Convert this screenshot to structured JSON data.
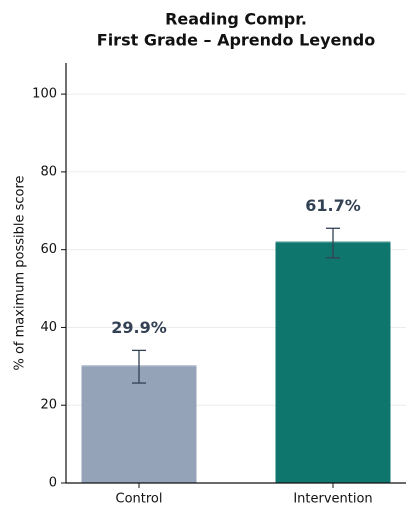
{
  "chart_data": {
    "type": "bar",
    "title": "Reading Compr.",
    "subtitle": "First Grade – Aprendo Leyendo",
    "y_label": "% of maximum possible score",
    "categories": [
      "Control",
      "Intervention"
    ],
    "values": [
      29.9,
      61.7
    ],
    "value_labels": [
      "29.9%",
      "61.7%"
    ],
    "errors": [
      4.2,
      3.8
    ],
    "colors": [
      "#94a3b8",
      "#0f766e"
    ],
    "ylim": [
      0,
      108
    ],
    "yticks": [
      0,
      20,
      40,
      60,
      80,
      100
    ],
    "grid": true
  }
}
